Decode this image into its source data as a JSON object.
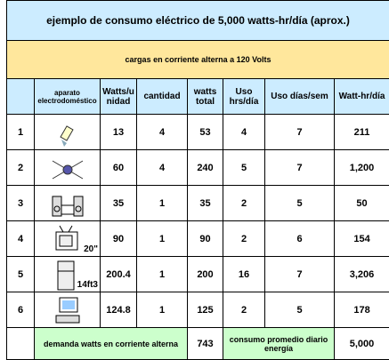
{
  "title": "ejemplo de consumo eléctrico de 5,000 watts-hr/día (aprox.)",
  "subtitle": "cargas en corriente alterna a 120 Volts",
  "table": {
    "header": [
      "aparato electrodoméstico",
      "Watts/unidad",
      "cantidad",
      "watts total",
      "Uso hrs/día",
      "Uso días/sem",
      "Watt-hr/día"
    ],
    "rows": [
      {
        "id": 1,
        "values": [
          13,
          4,
          53,
          4,
          7,
          211
        ]
      },
      {
        "id": 2,
        "values": [
          60,
          4,
          240,
          5,
          7,
          "1,200"
        ]
      },
      {
        "id": 3,
        "values": [
          35,
          1,
          35,
          2,
          5,
          50
        ]
      },
      {
        "id": 4,
        "tag": "20\"",
        "values": [
          90,
          1,
          90,
          2,
          6,
          154
        ]
      },
      {
        "id": 5,
        "tag": "14ft3",
        "values": [
          200.4,
          1,
          200,
          16,
          7,
          "3,206"
        ]
      },
      {
        "id": 6,
        "values": [
          124.8,
          1,
          125,
          2,
          5,
          178
        ]
      }
    ],
    "footer": {
      "demand_label": "demanda  watts en corriente alterna",
      "demand": 743,
      "energy_label": "consumo promedio diario energía",
      "energy": "5,000"
    }
  }
}
